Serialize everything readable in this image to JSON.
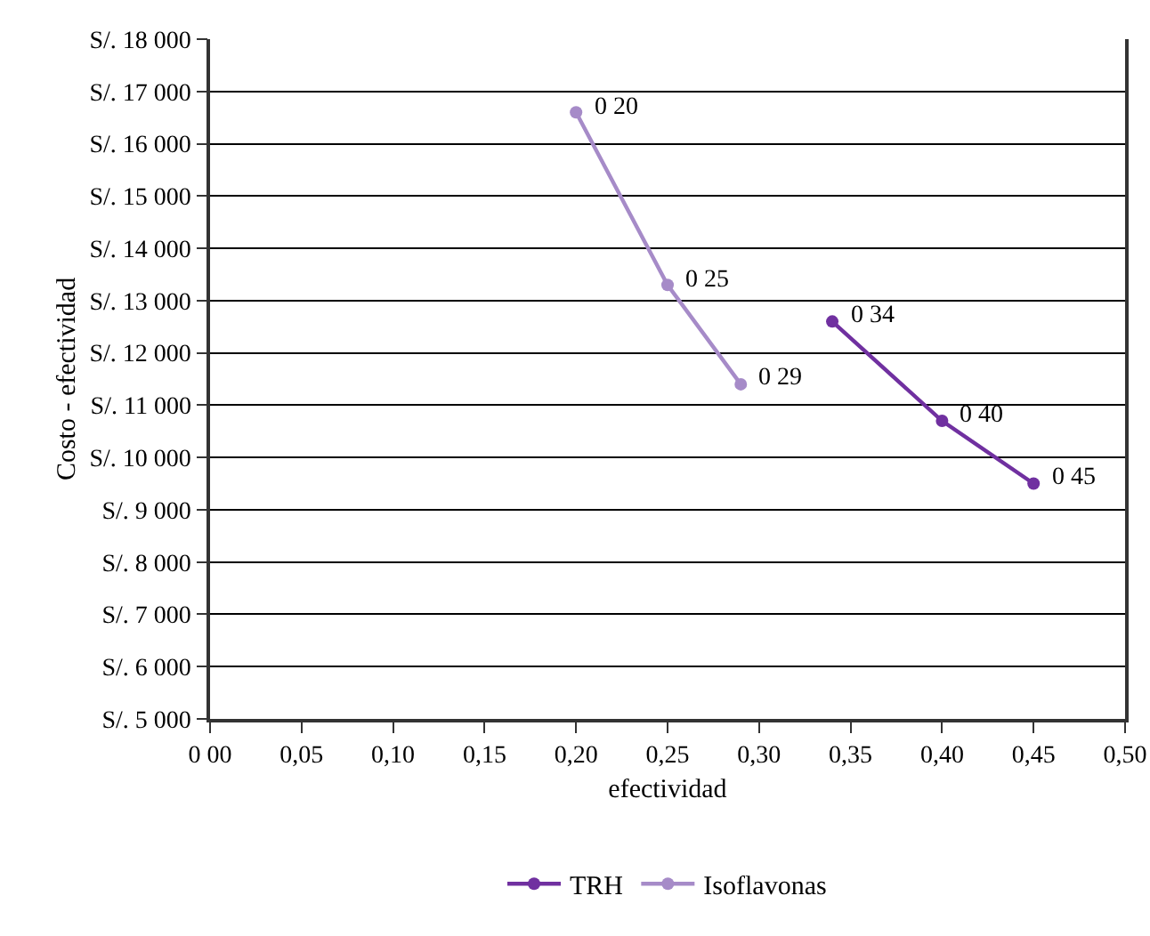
{
  "chart_data": {
    "type": "line",
    "xlabel": "efectividad",
    "ylabel": "Costo - efectividad",
    "xlim": [
      0,
      0.5
    ],
    "xticks": [
      {
        "value": 0,
        "label": "0 00"
      },
      {
        "value": 0.05,
        "label": "0,05"
      },
      {
        "value": 0.1,
        "label": "0,10"
      },
      {
        "value": 0.15,
        "label": "0,15"
      },
      {
        "value": 0.2,
        "label": "0,20"
      },
      {
        "value": 0.25,
        "label": "0,25"
      },
      {
        "value": 0.3,
        "label": "0,30"
      },
      {
        "value": 0.35,
        "label": "0,35"
      },
      {
        "value": 0.4,
        "label": "0,40"
      },
      {
        "value": 0.45,
        "label": "0,45"
      },
      {
        "value": 0.5,
        "label": "0,50"
      }
    ],
    "ylim": [
      5000,
      18000
    ],
    "yticks": [
      {
        "value": 5000,
        "label": "S/. 5 000"
      },
      {
        "value": 6000,
        "label": "S/. 6 000"
      },
      {
        "value": 7000,
        "label": "S/. 7 000"
      },
      {
        "value": 8000,
        "label": "S/. 8 000"
      },
      {
        "value": 9000,
        "label": "S/. 9 000"
      },
      {
        "value": 10000,
        "label": "S/. 10 000"
      },
      {
        "value": 11000,
        "label": "S/. 11 000"
      },
      {
        "value": 12000,
        "label": "S/. 12 000"
      },
      {
        "value": 13000,
        "label": "S/. 13 000"
      },
      {
        "value": 14000,
        "label": "S/. 14 000"
      },
      {
        "value": 15000,
        "label": "S/. 15 000"
      },
      {
        "value": 16000,
        "label": "S/. 16 000"
      },
      {
        "value": 17000,
        "label": "S/. 17 000"
      },
      {
        "value": 18000,
        "label": "S/. 18 000"
      }
    ],
    "series": [
      {
        "name": "TRH",
        "color": "#7030a0",
        "x": [
          0.34,
          0.4,
          0.45
        ],
        "values": [
          12600,
          10700,
          9500
        ]
      },
      {
        "name": "Isoflavonas",
        "color": "#a68bc8",
        "x": [
          0.2,
          0.25,
          0.29
        ],
        "values": [
          16600,
          13300,
          11400
        ]
      }
    ],
    "annotations": [
      {
        "text": "0 34",
        "x": 0.34,
        "y": 12600
      },
      {
        "text": "0 40",
        "x": 0.4,
        "y": 10700
      },
      {
        "text": "0 45",
        "x": 0.45,
        "y": 9500
      },
      {
        "text": "0 20",
        "x": 0.2,
        "y": 16600
      },
      {
        "text": "0 25",
        "x": 0.25,
        "y": 13300
      },
      {
        "text": "0 29",
        "x": 0.29,
        "y": 11400
      }
    ],
    "grid": "y",
    "legend": "bottom",
    "marker": "circle",
    "line_style": "solid"
  }
}
